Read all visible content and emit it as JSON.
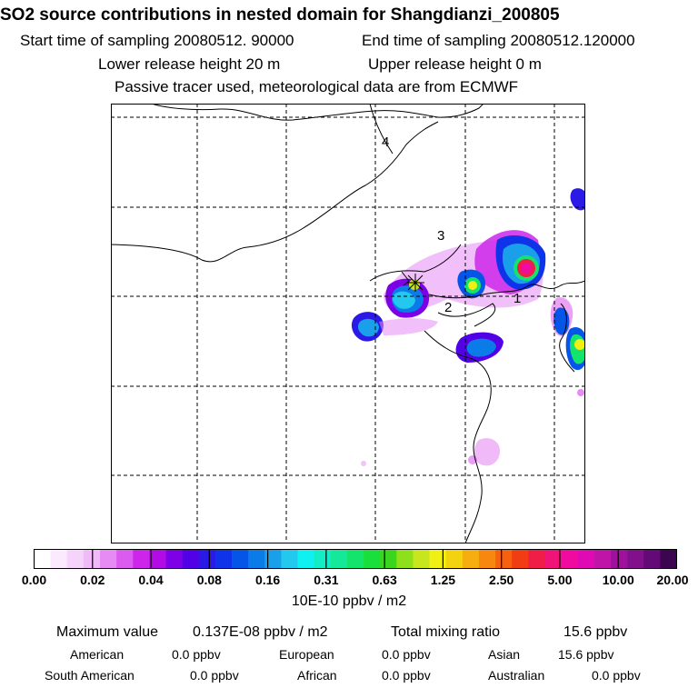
{
  "title": "SO2 source contributions in nested domain for Shangdianzi_200805",
  "sampling": {
    "start": "Start time of sampling 20080512. 90000",
    "end": "End time of sampling 20080512.120000"
  },
  "release": {
    "lower": "Lower release height   20 m",
    "upper": "Upper release height    0 m"
  },
  "tracer_note": "Passive tracer used, meteorological data are from ECMWF",
  "map": {
    "receptor_labels": [
      "1",
      "2",
      "3",
      "4"
    ]
  },
  "colorbar": {
    "tick_labels": [
      "0.00",
      "0.02",
      "0.04",
      "0.08",
      "0.16",
      "0.31",
      "0.63",
      "1.25",
      "2.50",
      "5.00",
      "10.00",
      "20.00"
    ],
    "colors": [
      "#ffffff",
      "#fbe9fd",
      "#f6d3fb",
      "#f0b9f8",
      "#e68af4",
      "#db5bf0",
      "#cd26ea",
      "#b30be6",
      "#7d00e6",
      "#5200e6",
      "#2b1ae6",
      "#0f33e8",
      "#0555e8",
      "#0b7be8",
      "#1aa0ea",
      "#22c8ee",
      "#0ff0f0",
      "#12edc5",
      "#14e99a",
      "#15e46c",
      "#18df3c",
      "#3ad61e",
      "#8de01a",
      "#c8e61e",
      "#f0f014",
      "#f5d20f",
      "#f7ad0f",
      "#f7870f",
      "#f7600f",
      "#f23c14",
      "#f01e46",
      "#f01478",
      "#f00aa0",
      "#e00ab4",
      "#c014a8",
      "#a0109c",
      "#82108c",
      "#640a78",
      "#3c0550"
    ],
    "units": "10E-10 ppbv / m2"
  },
  "summary": {
    "max_label": "Maximum value",
    "max_value": "0.137E-08 ppbv / m2",
    "total_label": "Total mixing ratio",
    "total_value": "15.6 ppbv"
  },
  "regions": [
    {
      "name": "American",
      "value": "0.0 ppbv"
    },
    {
      "name": "European",
      "value": "0.0 ppbv"
    },
    {
      "name": "Asian",
      "value": "15.6 ppbv"
    },
    {
      "name": "South American",
      "value": "0.0 ppbv"
    },
    {
      "name": "African",
      "value": "0.0 ppbv"
    },
    {
      "name": "Australian",
      "value": "0.0 ppbv"
    }
  ]
}
